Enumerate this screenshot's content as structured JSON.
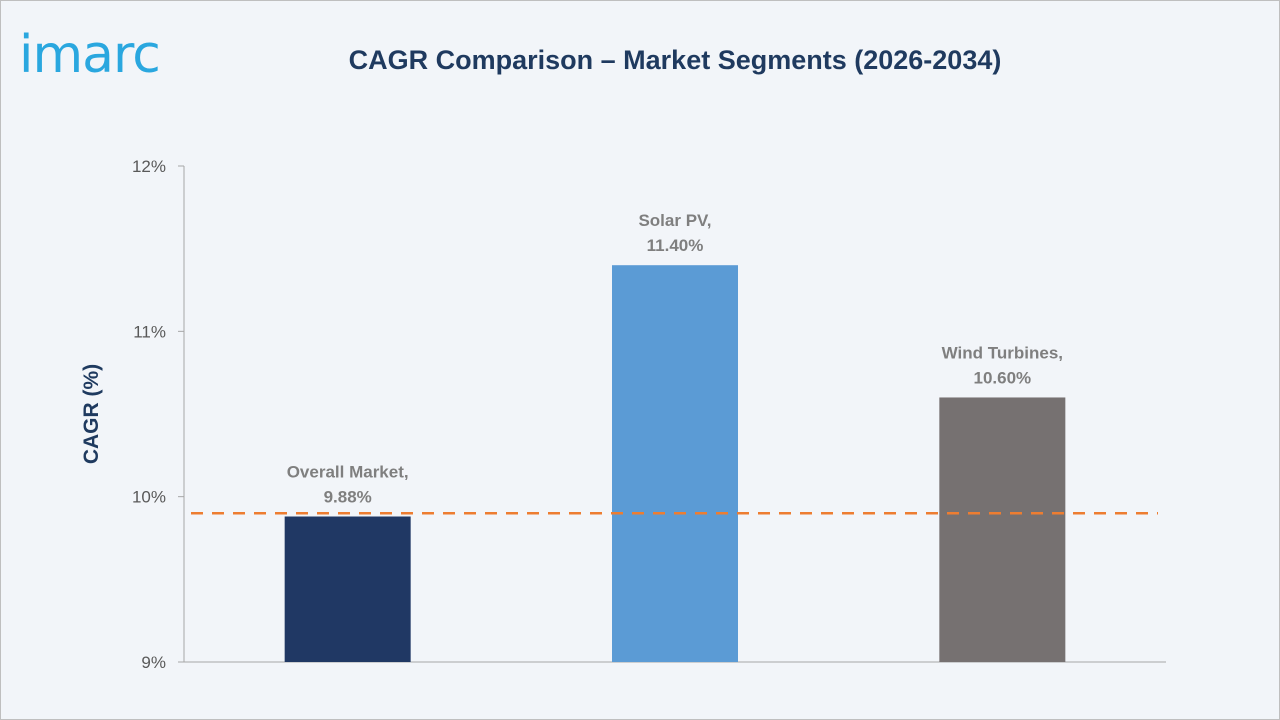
{
  "logo": {
    "text": "imarc"
  },
  "colors": {
    "background": "#f2f5f9",
    "title": "#1f3a5f",
    "logo": "#2aa7df",
    "axis": "#a6a6a6",
    "tick_label": "#595959",
    "data_label": "#7f7f7f",
    "reference_line": "#ed7d31"
  },
  "chart_data": {
    "type": "bar",
    "title": "CAGR Comparison – Market Segments (2026-2034)",
    "ylabel": "CAGR (%)",
    "xlabel": "",
    "ylim": [
      9,
      12
    ],
    "yticks": [
      9,
      10,
      11,
      12
    ],
    "ytick_labels": [
      "9%",
      "10%",
      "11%",
      "12%"
    ],
    "grid": false,
    "legend": "none",
    "categories": [
      "Overall Market",
      "Solar PV",
      "Wind Turbines"
    ],
    "values": [
      9.88,
      11.4,
      10.6
    ],
    "bar_colors": [
      "#203864",
      "#5b9bd5",
      "#767171"
    ],
    "data_labels": [
      [
        "Overall Market,",
        "9.88%"
      ],
      [
        "Solar PV,",
        "11.40%"
      ],
      [
        "Wind Turbines,",
        "10.60%"
      ]
    ],
    "reference_line": {
      "value": 9.9,
      "style": "dashed"
    }
  }
}
